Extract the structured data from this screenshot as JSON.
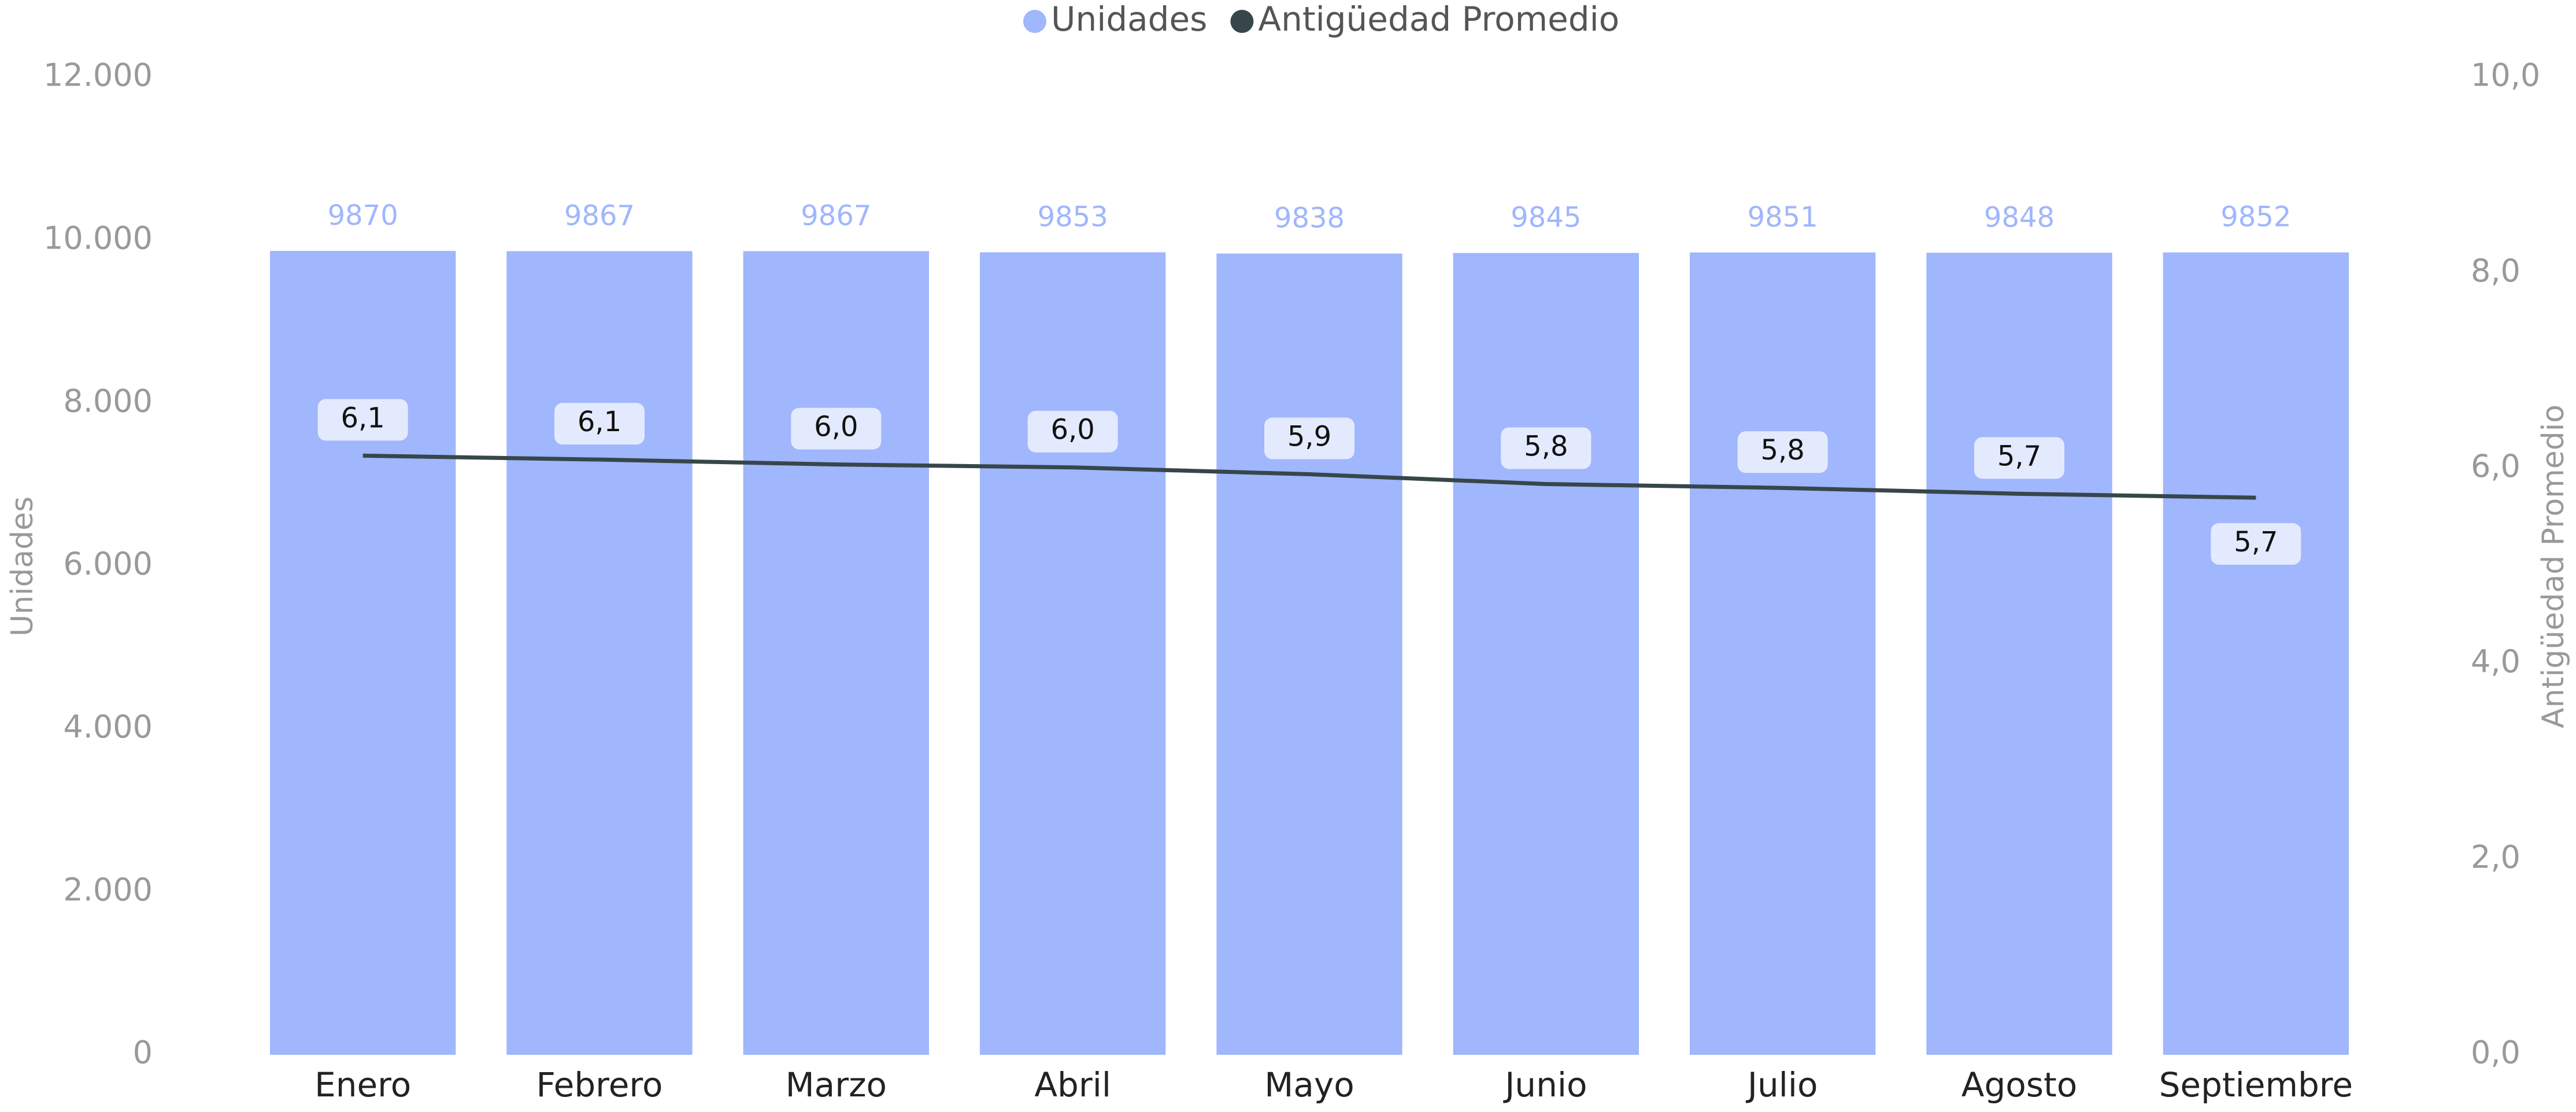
{
  "chart_data": {
    "type": "bar_line",
    "categories": [
      "Enero",
      "Febrero",
      "Marzo",
      "Abril",
      "Mayo",
      "Junio",
      "Julio",
      "Agosto",
      "Septiembre"
    ],
    "series": [
      {
        "name": "Unidades",
        "color": "#a0b6fd",
        "type": "bar",
        "values": [
          9870,
          9867,
          9867,
          9853,
          9838,
          9845,
          9851,
          9848,
          9852
        ]
      },
      {
        "name": "Antigüedad Promedio",
        "color": "#374649",
        "type": "line",
        "axis": "y2",
        "values": [
          6.13,
          6.09,
          6.04,
          6.01,
          5.94,
          5.84,
          5.8,
          5.74,
          5.7
        ],
        "value_labels": [
          "6,1",
          "6,1",
          "6,0",
          "6,0",
          "5,9",
          "5,8",
          "5,8",
          "5,7",
          "5,7"
        ]
      }
    ],
    "ylabel": "Unidades",
    "y2label": "Antigüedad Promedio",
    "ylim": [
      0,
      12000
    ],
    "yticks": [
      0,
      {
        "value": 2000,
        "label": "2.000"
      },
      {
        "value": 4000,
        "label": "4.000"
      },
      {
        "value": 6000,
        "label": "6.000"
      },
      {
        "value": 8000,
        "label": "8.000"
      },
      {
        "value": 10000,
        "label": "10.000"
      },
      {
        "value": 12000,
        "label": "12.000"
      }
    ],
    "y2lim": [
      0,
      10
    ],
    "y2ticks": [
      {
        "value": 0,
        "label": "0,0"
      },
      {
        "value": 2,
        "label": "2,0"
      },
      {
        "value": 4,
        "label": "4,0"
      },
      {
        "value": 6,
        "label": "6,0"
      },
      {
        "value": 8,
        "label": "8,0"
      },
      {
        "value": 10,
        "label": "10,0"
      }
    ],
    "legend": "top"
  }
}
